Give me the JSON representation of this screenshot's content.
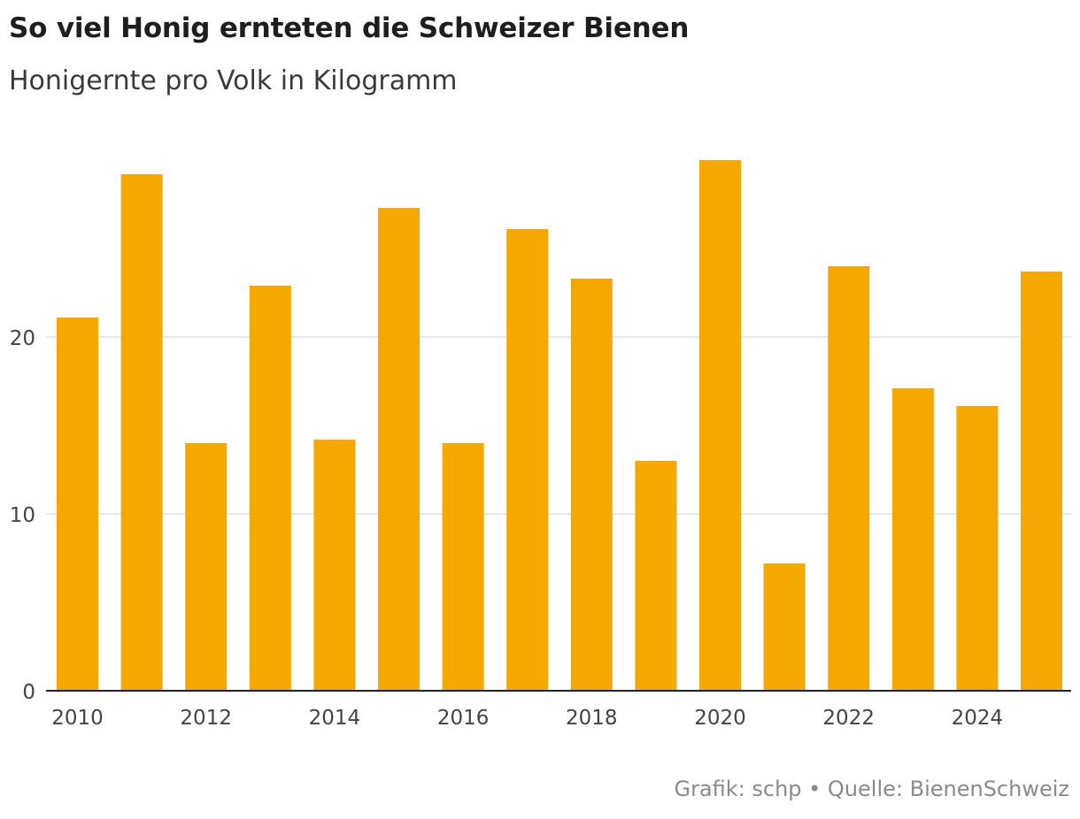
{
  "chart_data": {
    "type": "bar",
    "title": "So viel Honig ernteten die Schweizer Bienen",
    "subtitle": "Honigernte pro Volk in Kilogramm",
    "categories": [
      "2010",
      "2011",
      "2012",
      "2013",
      "2014",
      "2015",
      "2016",
      "2017",
      "2018",
      "2019",
      "2020",
      "2021",
      "2022",
      "2023",
      "2024",
      "2025"
    ],
    "values": [
      21.1,
      29.2,
      14.0,
      22.9,
      14.2,
      27.3,
      14.0,
      26.1,
      23.3,
      13.0,
      30.0,
      7.2,
      24.0,
      17.1,
      16.1,
      23.7
    ],
    "xtick_labels": [
      "2010",
      "2012",
      "2014",
      "2016",
      "2018",
      "2020",
      "2022",
      "2024"
    ],
    "yticks": [
      0,
      10,
      20
    ],
    "ylim": [
      0,
      30
    ],
    "xlabel": "",
    "ylabel": "",
    "grid": true,
    "bar_color": "#F5A800",
    "grid_color": "#E0E0E0",
    "axis_color": "#222222"
  },
  "footer": "Grafik: schp • Quelle: BienenSchweiz"
}
